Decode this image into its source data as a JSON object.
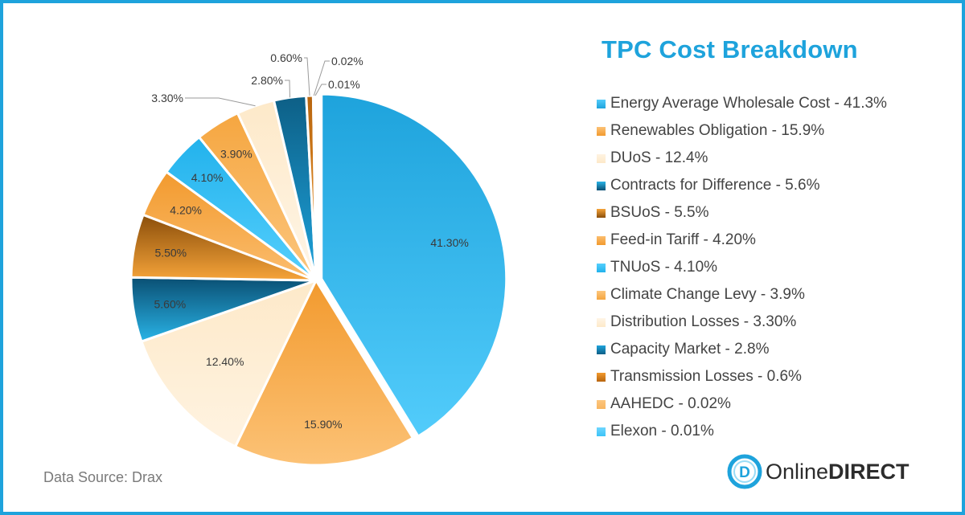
{
  "chart_data": {
    "type": "pie",
    "title": "TPC Cost Breakdown",
    "slices": [
      {
        "name": "Energy Average Wholesale Cost",
        "legend": "Energy Average Wholesale Cost - 41.3%",
        "value": 41.3,
        "label": "41.30%",
        "color": "#1ea3dc",
        "color2": "#52ccfb"
      },
      {
        "name": "Renewables Obligation",
        "legend": "Renewables Obligation - 15.9%",
        "value": 15.9,
        "label": "15.90%",
        "color": "#f29a2e",
        "color2": "#fcc276"
      },
      {
        "name": "DUoS",
        "legend": "DUoS - 12.4%",
        "value": 12.4,
        "label": "12.40%",
        "color": "#fde9c9",
        "color2": "#fff3e1"
      },
      {
        "name": "Contracts for Difference",
        "legend": "Contracts for Difference - 5.6%",
        "value": 5.6,
        "label": "5.60%",
        "color": "#0a4f73",
        "color2": "#29b3e6"
      },
      {
        "name": "BSUoS",
        "legend": "BSUoS - 5.5%",
        "value": 5.5,
        "label": "5.50%",
        "color": "#8a4e0a",
        "color2": "#f6a43a"
      },
      {
        "name": "Feed-in Tariff",
        "legend": "Feed-in Tariff - 4.20%",
        "value": 4.2,
        "label": "4.20%",
        "color": "#f29a2e",
        "color2": "#fbbd6e"
      },
      {
        "name": "TNUoS",
        "legend": "TNUoS - 4.10%",
        "value": 4.1,
        "label": "4.10%",
        "color": "#22b2ec",
        "color2": "#55cffd"
      },
      {
        "name": "Climate Change Levy",
        "legend": "Climate Change Levy - 3.9%",
        "value": 3.9,
        "label": "3.90%",
        "color": "#f5a640",
        "color2": "#fcc67e"
      },
      {
        "name": "Distribution Losses",
        "legend": "Distribution Losses - 3.30%",
        "value": 3.3,
        "label": "3.30%",
        "color": "#fde9c9",
        "color2": "#fff5e6"
      },
      {
        "name": "Capacity Market",
        "legend": "Capacity Market - 2.8%",
        "value": 2.8,
        "label": "2.80%",
        "color": "#0d5f86",
        "color2": "#1ea3dc"
      },
      {
        "name": "Transmission Losses",
        "legend": "Transmission Losses - 0.6%",
        "value": 0.6,
        "label": "0.60%",
        "color": "#b8650e",
        "color2": "#f29a2e"
      },
      {
        "name": "AAHEDC",
        "legend": "AAHEDC - 0.02%",
        "value": 0.02,
        "label": "0.02%",
        "color": "#f8b560",
        "color2": "#fcc67e"
      },
      {
        "name": "Elexon",
        "legend": "Elexon - 0.01%",
        "value": 0.01,
        "label": "0.01%",
        "color": "#3cc3f7",
        "color2": "#6fd6ff"
      }
    ]
  },
  "footer": {
    "source": "Data Source: Drax",
    "brand_regular": "Online",
    "brand_bold": "DIRECT",
    "brand_mark": "D"
  },
  "colors": {
    "accent": "#1ea3dc",
    "text": "#444444",
    "muted": "#7a7a7a"
  }
}
